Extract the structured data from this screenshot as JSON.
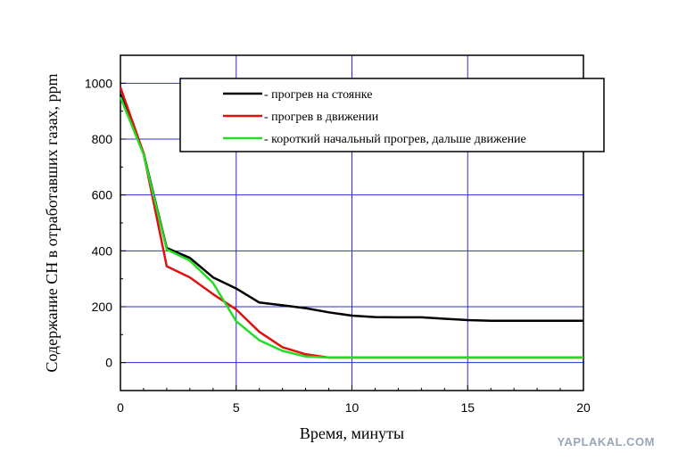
{
  "chart_data": {
    "type": "line",
    "xlabel": "Время, минуты",
    "ylabel": "Содержание CH в отработавших газах, ppm",
    "xlim": [
      0,
      20
    ],
    "ylim": [
      -100,
      1100
    ],
    "xticks": [
      0,
      5,
      10,
      15,
      20
    ],
    "yticks": [
      0,
      200,
      400,
      600,
      800,
      1000
    ],
    "grid": true,
    "legend_position": "top-right",
    "series": [
      {
        "name": "- прогрев на стоянке",
        "color": "#000000",
        "x": [
          0,
          1,
          2,
          3,
          4,
          5,
          6,
          7,
          8,
          9,
          10,
          11,
          12,
          13,
          14,
          15,
          16,
          17,
          18,
          19,
          20
        ],
        "y": [
          960,
          750,
          410,
          375,
          305,
          265,
          215,
          205,
          195,
          180,
          168,
          163,
          162,
          162,
          157,
          152,
          150,
          150,
          150,
          150,
          150
        ]
      },
      {
        "name": "- прогрев в движении",
        "color": "#e01010",
        "x": [
          0,
          1,
          2,
          3,
          4,
          5,
          6,
          7,
          8,
          9,
          10,
          12,
          14,
          16,
          18,
          20
        ],
        "y": [
          985,
          750,
          345,
          305,
          245,
          190,
          110,
          55,
          30,
          18,
          18,
          18,
          18,
          18,
          18,
          18
        ]
      },
      {
        "name": "- короткий начальный прогрев, дальше движение",
        "color": "#22dd22",
        "x": [
          0,
          1,
          2,
          3,
          4,
          5,
          6,
          7,
          8,
          9,
          10,
          12,
          14,
          16,
          18,
          20
        ],
        "y": [
          950,
          745,
          405,
          365,
          285,
          148,
          80,
          42,
          22,
          18,
          18,
          18,
          18,
          18,
          18,
          18
        ]
      }
    ]
  },
  "watermark": "YAPLAKAL.COM"
}
